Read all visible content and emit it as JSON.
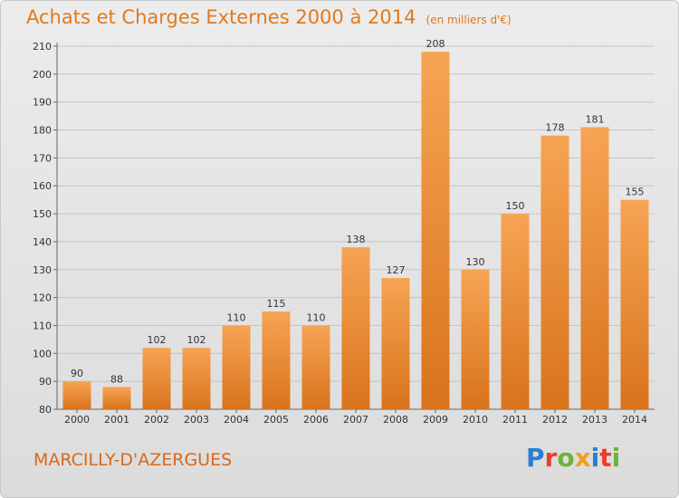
{
  "header": {
    "title": "Achats et Charges Externes 2000 à 2014",
    "unit": "(en milliers d'€)"
  },
  "footer": {
    "location": "MARCILLY-D'AZERGUES",
    "brand": "Proxiti",
    "brand_colors": [
      "#2a7fd4",
      "#e8402a",
      "#6bb33a",
      "#f0a020",
      "#2a7fd4",
      "#e8402a",
      "#6bb33a"
    ]
  },
  "colors": {
    "bar_top": "#f6a454",
    "bar_bottom": "#d9731c",
    "title": "#e07a1c",
    "grid": "#c4c4c4",
    "axis_text": "#333333"
  },
  "chart_data": {
    "type": "bar",
    "categories": [
      "2000",
      "2001",
      "2002",
      "2003",
      "2004",
      "2005",
      "2006",
      "2007",
      "2008",
      "2009",
      "2010",
      "2011",
      "2012",
      "2013",
      "2014"
    ],
    "values": [
      90,
      88,
      102,
      102,
      110,
      115,
      110,
      138,
      127,
      208,
      130,
      150,
      178,
      181,
      155
    ],
    "ylim": [
      80,
      210
    ],
    "yticks": [
      80,
      90,
      100,
      110,
      120,
      130,
      140,
      150,
      160,
      170,
      180,
      190,
      200,
      210
    ],
    "grid": true,
    "legend": "none"
  }
}
